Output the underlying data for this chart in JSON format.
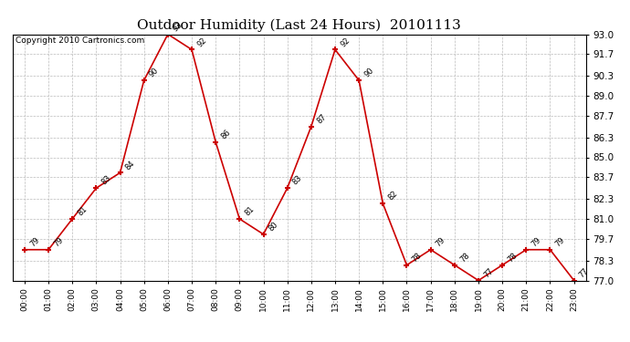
{
  "title": "Outdoor Humidity (Last 24 Hours)  20101113",
  "copyright": "Copyright 2010 Cartronics.com",
  "x_labels": [
    "00:00",
    "01:00",
    "02:00",
    "03:00",
    "04:00",
    "05:00",
    "06:00",
    "07:00",
    "08:00",
    "09:00",
    "10:00",
    "11:00",
    "12:00",
    "13:00",
    "14:00",
    "15:00",
    "16:00",
    "17:00",
    "18:00",
    "19:00",
    "20:00",
    "21:00",
    "22:00",
    "23:00"
  ],
  "y_values": [
    79,
    79,
    81,
    83,
    84,
    90,
    93,
    92,
    86,
    81,
    80,
    83,
    87,
    92,
    90,
    82,
    78,
    79,
    78,
    77,
    78,
    79,
    79,
    77
  ],
  "ylim_min": 77.0,
  "ylim_max": 93.0,
  "yticks": [
    77.0,
    78.3,
    79.7,
    81.0,
    82.3,
    83.7,
    85.0,
    86.3,
    87.7,
    89.0,
    90.3,
    91.7,
    93.0
  ],
  "line_color": "#cc0000",
  "marker_color": "#cc0000",
  "bg_color": "#ffffff",
  "grid_color": "#bbbbbb",
  "title_fontsize": 11,
  "copyright_fontsize": 6.5,
  "annotation_fontsize": 6.0
}
